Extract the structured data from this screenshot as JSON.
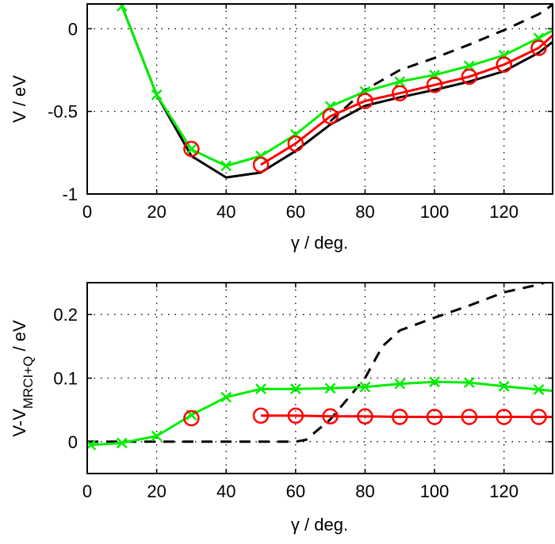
{
  "chart_data": [
    {
      "type": "line",
      "xlabel": "γ / deg.",
      "ylabel": "V / eV",
      "xlim": [
        0,
        134
      ],
      "ylim": [
        -1,
        0.15
      ],
      "xticks": [
        "0",
        "20",
        "40",
        "60",
        "80",
        "100",
        "120"
      ],
      "xtick_values": [
        0,
        20,
        40,
        60,
        80,
        100,
        120
      ],
      "yticks": [
        "-1",
        "-0.5",
        "0"
      ],
      "ytick_values": [
        -1,
        -0.5,
        0
      ],
      "grid": true,
      "series": [
        {
          "color": "#000000",
          "style": "solid",
          "marker": "none",
          "x": [
            10,
            20,
            30,
            40,
            50,
            60,
            70,
            80,
            90,
            100,
            110,
            120,
            130,
            134
          ],
          "y": [
            0.137,
            -0.4,
            -0.77,
            -0.9,
            -0.87,
            -0.74,
            -0.58,
            -0.466,
            -0.415,
            -0.37,
            -0.32,
            -0.257,
            -0.145,
            -0.08
          ]
        },
        {
          "color": "#000000",
          "style": "dashed",
          "marker": "none",
          "x": [
            70,
            80,
            90,
            100,
            110,
            120,
            130,
            134
          ],
          "y": [
            -0.56,
            -0.37,
            -0.25,
            -0.177,
            -0.096,
            -0.008,
            0.088,
            0.145
          ]
        },
        {
          "color": "#00ee00",
          "style": "solid",
          "marker": "x",
          "x": [
            10,
            20,
            30,
            40,
            50,
            60,
            70,
            80,
            90,
            100,
            110,
            120,
            130,
            134
          ],
          "y": [
            0.137,
            -0.4,
            -0.73,
            -0.83,
            -0.77,
            -0.64,
            -0.47,
            -0.38,
            -0.32,
            -0.28,
            -0.225,
            -0.16,
            -0.056,
            -0.01
          ],
          "marker_count": 13
        },
        {
          "color": "#ff0000",
          "style": "solid",
          "marker": "o",
          "x": [
            30,
            50,
            60,
            70,
            80,
            90,
            100,
            110,
            120,
            130,
            134
          ],
          "y": [
            -0.727,
            -0.823,
            -0.695,
            -0.53,
            -0.437,
            -0.39,
            -0.34,
            -0.29,
            -0.217,
            -0.116,
            -0.04
          ],
          "marker_count": 10,
          "line_from_index": 1
        }
      ]
    },
    {
      "type": "line",
      "xlabel": "γ / deg.",
      "ylabel_main": "V-V",
      "ylabel_sub": "MRCI+Q",
      "ylabel_unit": " / eV",
      "xlim": [
        0,
        134
      ],
      "ylim": [
        -0.05,
        0.25
      ],
      "xticks": [
        "0",
        "20",
        "40",
        "60",
        "80",
        "100",
        "120"
      ],
      "xtick_values": [
        0,
        20,
        40,
        60,
        80,
        100,
        120
      ],
      "yticks": [
        "0",
        "0.1",
        "0.2"
      ],
      "ytick_values": [
        0,
        0.1,
        0.2
      ],
      "grid": true,
      "series": [
        {
          "color": "#000000",
          "style": "dashed",
          "marker": "none",
          "x": [
            0,
            60,
            63,
            70,
            80,
            85,
            90,
            100,
            110,
            120,
            130,
            134
          ],
          "y": [
            0,
            0,
            0.003,
            0.035,
            0.1,
            0.15,
            0.175,
            0.195,
            0.214,
            0.235,
            0.247,
            0.255
          ]
        },
        {
          "color": "#00ee00",
          "style": "solid",
          "marker": "x",
          "x": [
            1,
            10,
            20,
            30,
            40,
            50,
            60,
            70,
            80,
            90,
            100,
            110,
            120,
            130,
            134
          ],
          "y": [
            -0.005,
            -0.002,
            0.009,
            0.042,
            0.07,
            0.083,
            0.083,
            0.084,
            0.086,
            0.091,
            0.094,
            0.093,
            0.087,
            0.082,
            0.08
          ],
          "marker_count": 14
        },
        {
          "color": "#ff0000",
          "style": "solid",
          "marker": "o",
          "x": [
            30,
            50,
            60,
            70,
            80,
            90,
            100,
            110,
            120,
            130,
            134
          ],
          "y": [
            0.037,
            0.041,
            0.041,
            0.04,
            0.04,
            0.039,
            0.039,
            0.039,
            0.039,
            0.039,
            0.039
          ],
          "marker_count": 10,
          "line_from_index": 1
        }
      ]
    }
  ]
}
